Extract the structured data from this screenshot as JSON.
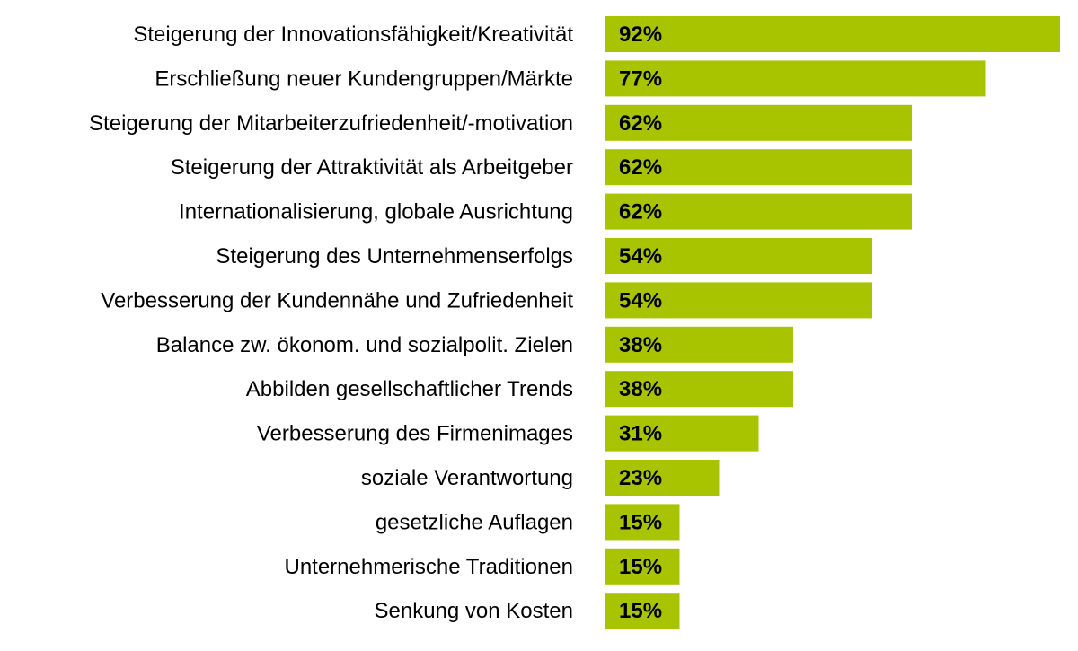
{
  "chart_data": {
    "type": "bar",
    "orientation": "horizontal",
    "categories": [
      "Steigerung der Innovationsfähigkeit/Kreativität",
      "Erschließung neuer Kundengruppen/Märkte",
      "Steigerung der Mitarbeiterzufriedenheit/-motivation",
      "Steigerung der Attraktivität als Arbeitgeber",
      "Internationalisierung, globale Ausrichtung",
      "Steigerung des Unternehmenserfolgs",
      "Verbesserung der Kundennähe und Zufriedenheit",
      "Balance zw. ökonom. und sozialpolit. Zielen",
      "Abbilden gesellschaftlicher Trends",
      "Verbesserung des Firmenimages",
      "soziale Verantwortung",
      "gesetzliche Auflagen",
      "Unternehmerische Traditionen",
      "Senkung von Kosten"
    ],
    "values": [
      92,
      77,
      62,
      62,
      62,
      54,
      54,
      38,
      38,
      31,
      23,
      15,
      15,
      15
    ],
    "value_labels": [
      "92%",
      "77%",
      "62%",
      "62%",
      "62%",
      "54%",
      "54%",
      "38%",
      "38%",
      "31%",
      "23%",
      "15%",
      "15%",
      "15%"
    ],
    "xlim": [
      0,
      92
    ],
    "grid": false,
    "legend": "none",
    "bar_color": "#a8c300"
  }
}
